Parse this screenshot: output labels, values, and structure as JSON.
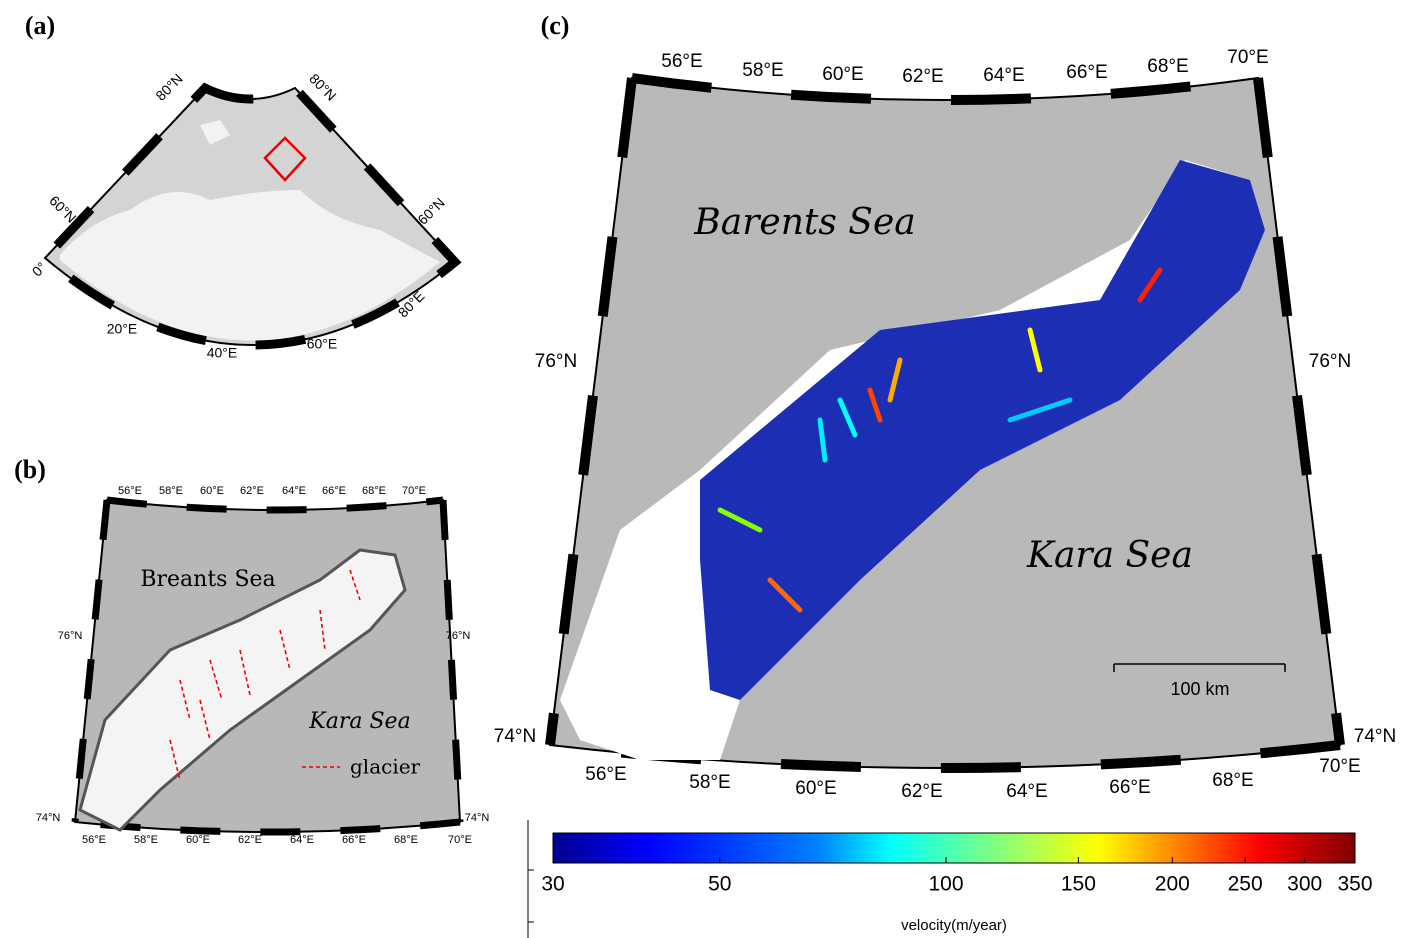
{
  "panels": [
    {
      "label": "(a)",
      "grid_labels": [
        "80°N",
        "80°N",
        "60°N",
        "60°N",
        "0°",
        "20°E",
        "40°E",
        "60°E",
        "80°E"
      ]
    },
    {
      "label": "(b)",
      "top_labels": [
        "56°E",
        "58°E",
        "60°E",
        "62°E",
        "64°E",
        "66°E",
        "68°E",
        "70°E"
      ],
      "bottom_labels": [
        "56°E",
        "58°E",
        "60°E",
        "62°E",
        "64°E",
        "66°E",
        "68°E",
        "70°E"
      ],
      "side_labels": [
        "76°N",
        "76°N",
        "74°N",
        "74°N"
      ],
      "sea_labels": [
        "Breants Sea",
        "Kara Sea"
      ],
      "legend": "glacier"
    },
    {
      "label": "(c)",
      "top_labels": [
        "56°E",
        "58°E",
        "60°E",
        "62°E",
        "64°E",
        "66°E",
        "68°E",
        "70°E"
      ],
      "bottom_labels": [
        "56°E",
        "58°E",
        "60°E",
        "62°E",
        "64°E",
        "66°E",
        "68°E",
        "70°E"
      ],
      "side_labels": [
        "76°N",
        "76°N",
        "74°N",
        "74°N"
      ],
      "sea_labels": [
        "Barents Sea",
        "Kara Sea"
      ],
      "scale_bar": "100 km"
    }
  ],
  "colorbar": {
    "label": "velocity(m/year)",
    "scale": "log",
    "lim": [
      30,
      350
    ],
    "ticks": [
      30,
      50,
      100,
      150,
      200,
      250,
      300,
      350
    ]
  }
}
